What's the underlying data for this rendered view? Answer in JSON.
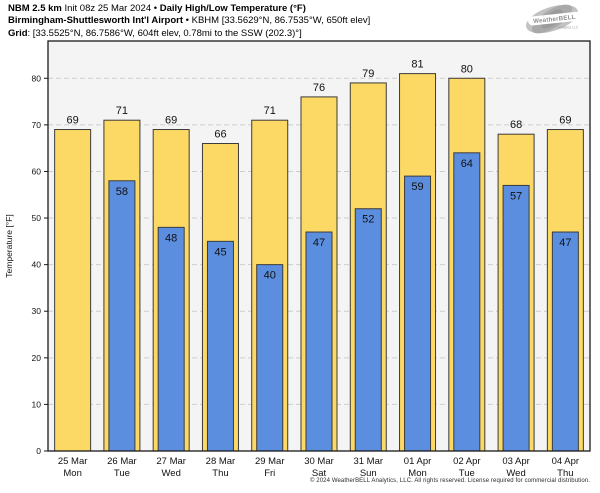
{
  "header": {
    "model": "NBM 2.5 km",
    "init_text": " Init 08z 25 Mar 2024 • ",
    "product": "Daily High/Low Temperature (°F)",
    "station": "Birmingham-Shuttlesworth Int'l Airport",
    "station_info": " • KBHM [33.5629°N, 86.7535°W, 650ft elev]",
    "grid_label": "Grid",
    "grid_info": ": [33.5525°N, 86.7586°W, 604ft elev, 0.78mi to the SSW (202.3)°]"
  },
  "logo": {
    "text": "WeatherBELL",
    "subtext": "Analytics LLC"
  },
  "chart_data": {
    "type": "bar",
    "title": "Daily High/Low Temperature (°F)",
    "xlabel": "",
    "ylabel": "Temperature [°F]",
    "ylim": [
      0,
      88
    ],
    "yticks": [
      0,
      10,
      20,
      30,
      40,
      50,
      60,
      70,
      80
    ],
    "grid": "horizontal-dashed",
    "legend": "none",
    "categories": [
      {
        "date": "25 Mar",
        "day": "Mon"
      },
      {
        "date": "26 Mar",
        "day": "Tue"
      },
      {
        "date": "27 Mar",
        "day": "Wed"
      },
      {
        "date": "28 Mar",
        "day": "Thu"
      },
      {
        "date": "29 Mar",
        "day": "Fri"
      },
      {
        "date": "30 Mar",
        "day": "Sat"
      },
      {
        "date": "31 Mar",
        "day": "Sun"
      },
      {
        "date": "01 Apr",
        "day": "Mon"
      },
      {
        "date": "02 Apr",
        "day": "Tue"
      },
      {
        "date": "03 Apr",
        "day": "Wed"
      },
      {
        "date": "04 Apr",
        "day": "Thu"
      }
    ],
    "series": [
      {
        "name": "Daily High",
        "color": "#fbd964",
        "values": [
          69,
          71,
          69,
          66,
          71,
          76,
          79,
          81,
          80,
          68,
          69
        ]
      },
      {
        "name": "Daily Low",
        "color": "#5c8ee0",
        "values": [
          null,
          58,
          48,
          45,
          40,
          47,
          52,
          59,
          64,
          57,
          47
        ]
      }
    ]
  },
  "colors": {
    "high_bar": "#fbd964",
    "low_bar": "#5c8ee0",
    "bar_border": "#3b3b3b",
    "plot_bg": "#f4f4f4",
    "gridline": "#cdcdcd",
    "axis": "#1a1a1a",
    "text": "#111111",
    "logo_gray": "#b5b5b5"
  },
  "footer": {
    "copyright": "© 2024 WeatherBELL Analytics, LLC. All rights reserved. License required for commercial distribution."
  }
}
